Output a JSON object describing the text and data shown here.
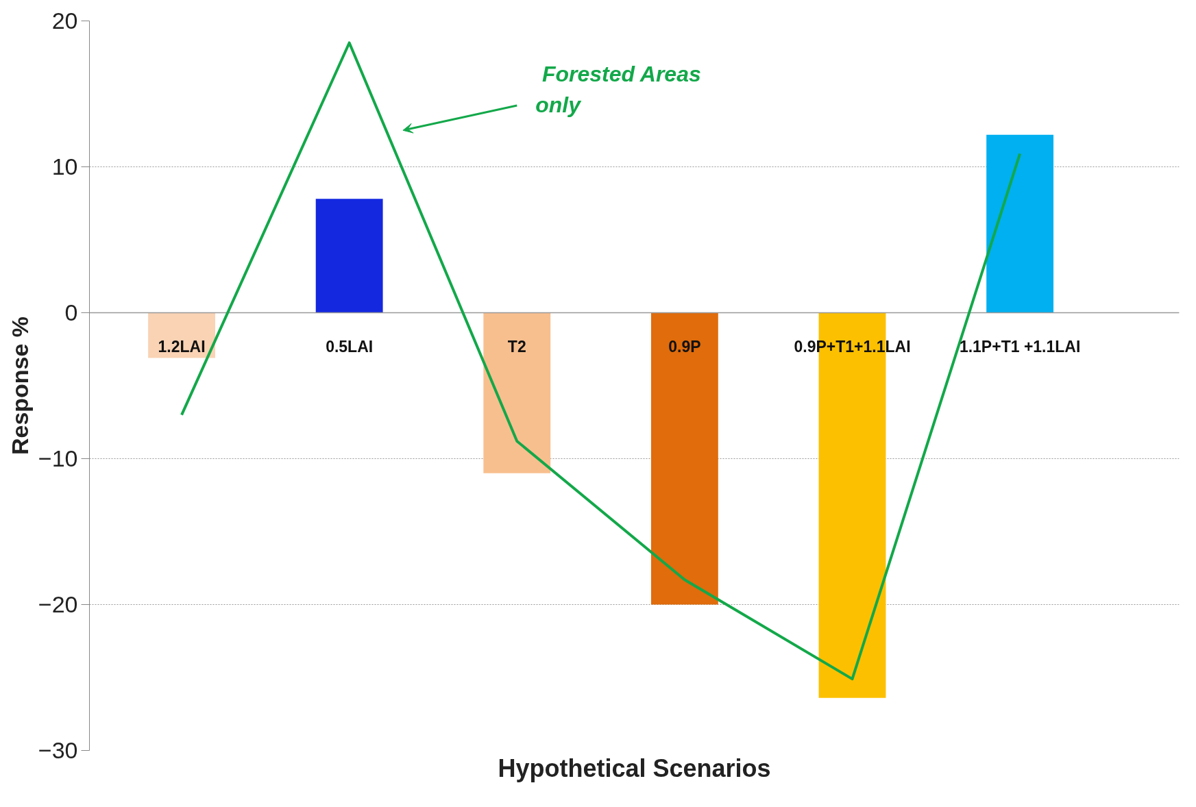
{
  "chart_data": {
    "type": "bar",
    "xlabel": "Hypothetical Scenarios",
    "ylabel": "Response %",
    "categories": [
      "1.2LAI",
      "0.5LAI",
      "T2",
      "0.9P",
      "0.9P+T1+1.1LAI",
      "1.1P+T1 +1.1LAI"
    ],
    "series": [
      {
        "values": [
          -3.1,
          7.8,
          -11.0,
          -20.0,
          -26.4,
          12.2
        ],
        "colors": [
          "#f9d3b4",
          "#1428e0",
          "#f8bf8e",
          "#e06c0c",
          "#fcc000",
          "#00b0f0"
        ]
      },
      {
        "type": "line",
        "color": "#13a84a",
        "values": [
          -7.0,
          18.5,
          -8.8,
          -18.3,
          -25.1,
          10.9
        ]
      }
    ],
    "ylim": [
      -30,
      20
    ],
    "yticks": [
      -30,
      -20,
      -10,
      0,
      10,
      20
    ],
    "grid": "y",
    "annotations": [
      "Forested Areas\nonly"
    ]
  }
}
